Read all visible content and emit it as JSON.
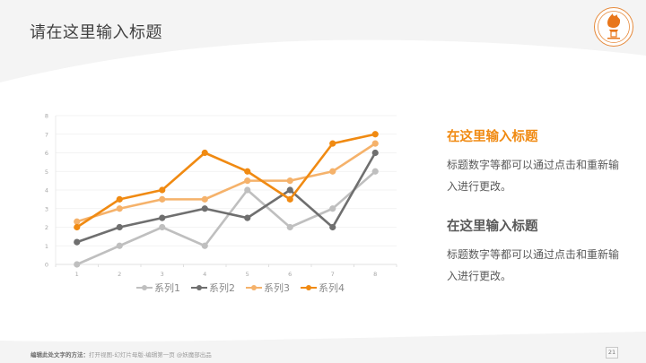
{
  "header": {
    "title": "请在这里输入标题",
    "logo_icon": "university-seal-torch-icon"
  },
  "colors": {
    "accent": "#F08A12",
    "series1": "#BFBFBF",
    "series2": "#6F6F6F",
    "series3": "#F5B26B",
    "series4": "#F08A12",
    "background_band": "#F4F4F4",
    "text_dark": "#404040",
    "text_body": "#595959"
  },
  "side_blocks": [
    {
      "title": "在这里输入标题",
      "body": "标题数字等都可以通过点击和重新输入进行更改。",
      "title_color": "#F08A12"
    },
    {
      "title": "在这里输入标题",
      "body": "标题数字等都可以通过点击和重新输入进行更改。",
      "title_color": "#595959"
    }
  ],
  "footer": {
    "label": "编辑此处文字的方法：",
    "instructions": "打开视图-幻灯片母版-编辑第一页 @妖魔部出品",
    "page_number": "21"
  },
  "chart_data": {
    "type": "line",
    "title": "",
    "xlabel": "",
    "ylabel": "",
    "x": [
      "1",
      "2",
      "3",
      "4",
      "5",
      "6",
      "7",
      "8"
    ],
    "yticks": [
      "0",
      "1",
      "2",
      "3",
      "4",
      "5",
      "6",
      "7",
      "8"
    ],
    "ylim": [
      0,
      8
    ],
    "grid": true,
    "legend_position": "bottom",
    "series": [
      {
        "name": "系列1",
        "color": "#BFBFBF",
        "values": [
          0,
          1,
          2,
          1,
          4,
          2,
          3,
          5
        ]
      },
      {
        "name": "系列2",
        "color": "#6F6F6F",
        "values": [
          1.2,
          2,
          2.5,
          3,
          2.5,
          4,
          2,
          6
        ]
      },
      {
        "name": "系列3",
        "color": "#F5B26B",
        "values": [
          2.3,
          3,
          3.5,
          3.5,
          4.5,
          4.5,
          5,
          6.5
        ]
      },
      {
        "name": "系列4",
        "color": "#F08A12",
        "values": [
          2,
          3.5,
          4,
          6,
          5,
          3.5,
          6.5,
          7
        ]
      }
    ]
  }
}
